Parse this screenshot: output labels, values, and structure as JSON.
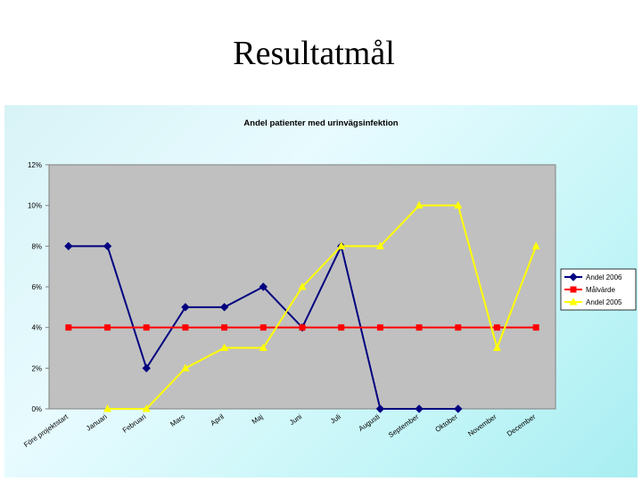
{
  "slide": {
    "title": "Resultatmål"
  },
  "chart_data": {
    "type": "line",
    "title": "Andel patienter med urinvägsinfektion",
    "categories": [
      "Före projektstart",
      "Januari",
      "Februari",
      "Mars",
      "April",
      "Maj",
      "Juni",
      "Juli",
      "Augusti",
      "September",
      "Oktober",
      "November",
      "December"
    ],
    "y_ticks": [
      "0%",
      "2%",
      "4%",
      "6%",
      "8%",
      "10%",
      "12%"
    ],
    "ylim": [
      0,
      0.12
    ],
    "grid": false,
    "legend_position": "right",
    "series": [
      {
        "name": "Andel 2006",
        "color": "#000080",
        "marker": "diamond",
        "values": [
          0.08,
          0.08,
          0.02,
          0.05,
          0.05,
          0.06,
          0.04,
          0.08,
          0.0,
          0.0,
          0.0,
          null,
          null
        ]
      },
      {
        "name": "Målvärde",
        "color": "#ff0000",
        "marker": "square",
        "values": [
          0.04,
          0.04,
          0.04,
          0.04,
          0.04,
          0.04,
          0.04,
          0.04,
          0.04,
          0.04,
          0.04,
          0.04,
          0.04
        ]
      },
      {
        "name": "Andel 2005",
        "color": "#ffff00",
        "marker": "triangle",
        "values": [
          null,
          0.0,
          0.0,
          0.02,
          0.03,
          0.03,
          0.06,
          0.08,
          0.08,
          0.1,
          0.1,
          0.03,
          0.08
        ]
      }
    ]
  }
}
